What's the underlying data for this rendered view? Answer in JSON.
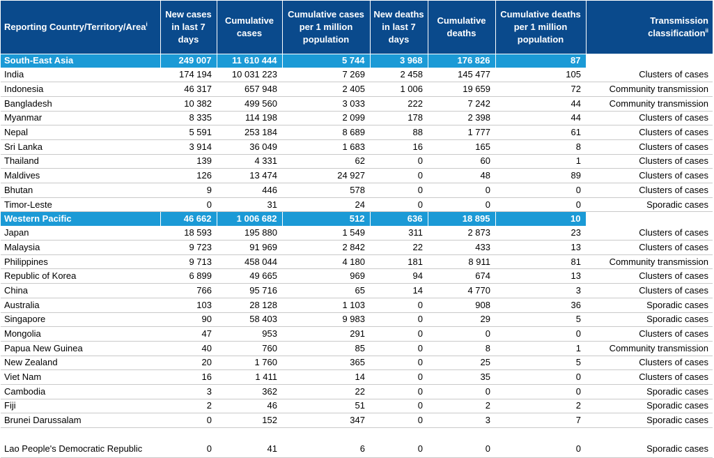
{
  "headers": {
    "country": "Reporting Country/Territory/Area",
    "country_sup": "i",
    "new_cases": "New cases in last 7 days",
    "cum_cases": "Cumulative cases",
    "cum_cases_per_million": "Cumulative cases per 1 million population",
    "new_deaths": "New deaths in last 7 days",
    "cum_deaths": "Cumulative deaths",
    "cum_deaths_per_million": "Cumulative deaths per 1 million population",
    "transmission": "Transmission classification",
    "transmission_sup": "ii"
  },
  "colors": {
    "header_bg": "#0a4a8c",
    "region_bg": "#1b9ad6"
  },
  "regions": [
    {
      "name": "South-East Asia",
      "new_cases": "249 007",
      "cum_cases": "11 610 444",
      "cum_cases_pm": "5 744",
      "new_deaths": "3 968",
      "cum_deaths": "176 826",
      "cum_deaths_pm": "87",
      "rows": [
        [
          "India",
          "174 194",
          "10 031 223",
          "7 269",
          "2 458",
          "145 477",
          "105",
          "Clusters of cases"
        ],
        [
          "Indonesia",
          "46 317",
          "657 948",
          "2 405",
          "1 006",
          "19 659",
          "72",
          "Community transmission"
        ],
        [
          "Bangladesh",
          "10 382",
          "499 560",
          "3 033",
          "222",
          "7 242",
          "44",
          "Community transmission"
        ],
        [
          "Myanmar",
          "8 335",
          "114 198",
          "2 099",
          "178",
          "2 398",
          "44",
          "Clusters of cases"
        ],
        [
          "Nepal",
          "5 591",
          "253 184",
          "8 689",
          "88",
          "1 777",
          "61",
          "Clusters of cases"
        ],
        [
          "Sri Lanka",
          "3 914",
          "36 049",
          "1 683",
          "16",
          "165",
          "8",
          "Clusters of cases"
        ],
        [
          "Thailand",
          "139",
          "4 331",
          "62",
          "0",
          "60",
          "1",
          "Clusters of cases"
        ],
        [
          "Maldives",
          "126",
          "13 474",
          "24 927",
          "0",
          "48",
          "89",
          "Clusters of cases"
        ],
        [
          "Bhutan",
          "9",
          "446",
          "578",
          "0",
          "0",
          "0",
          "Clusters of cases"
        ],
        [
          "Timor-Leste",
          "0",
          "31",
          "24",
          "0",
          "0",
          "0",
          "Sporadic cases"
        ]
      ]
    },
    {
      "name": "Western Pacific",
      "new_cases": "46 662",
      "cum_cases": "1 006 682",
      "cum_cases_pm": "512",
      "new_deaths": "636",
      "cum_deaths": "18 895",
      "cum_deaths_pm": "10",
      "rows": [
        [
          "Japan",
          "18 593",
          "195 880",
          "1 549",
          "311",
          "2 873",
          "23",
          "Clusters of cases"
        ],
        [
          "Malaysia",
          "9 723",
          "91 969",
          "2 842",
          "22",
          "433",
          "13",
          "Clusters of cases"
        ],
        [
          "Philippines",
          "9 713",
          "458 044",
          "4 180",
          "181",
          "8 911",
          "81",
          "Community transmission"
        ],
        [
          "Republic of Korea",
          "6 899",
          "49 665",
          "969",
          "94",
          "674",
          "13",
          "Clusters of cases"
        ],
        [
          "China",
          "766",
          "95 716",
          "65",
          "14",
          "4 770",
          "3",
          "Clusters of cases"
        ],
        [
          "Australia",
          "103",
          "28 128",
          "1 103",
          "0",
          "908",
          "36",
          "Sporadic cases"
        ],
        [
          "Singapore",
          "90",
          "58 403",
          "9 983",
          "0",
          "29",
          "5",
          "Sporadic cases"
        ],
        [
          "Mongolia",
          "47",
          "953",
          "291",
          "0",
          "0",
          "0",
          "Clusters of cases"
        ],
        [
          "Papua New Guinea",
          "40",
          "760",
          "85",
          "0",
          "8",
          "1",
          "Community transmission"
        ],
        [
          "New Zealand",
          "20",
          "1 760",
          "365",
          "0",
          "25",
          "5",
          "Clusters of cases"
        ],
        [
          "Viet Nam",
          "16",
          "1 411",
          "14",
          "0",
          "35",
          "0",
          "Clusters of cases"
        ],
        [
          "Cambodia",
          "3",
          "362",
          "22",
          "0",
          "0",
          "0",
          "Sporadic cases"
        ],
        [
          "Fiji",
          "2",
          "46",
          "51",
          "0",
          "2",
          "2",
          "Sporadic cases"
        ],
        [
          "Brunei Darussalam",
          "0",
          "152",
          "347",
          "0",
          "3",
          "7",
          "Sporadic cases"
        ],
        [
          "Lao People's Democratic Republic",
          "0",
          "41",
          "6",
          "0",
          "0",
          "0",
          "Sporadic cases"
        ]
      ]
    }
  ]
}
